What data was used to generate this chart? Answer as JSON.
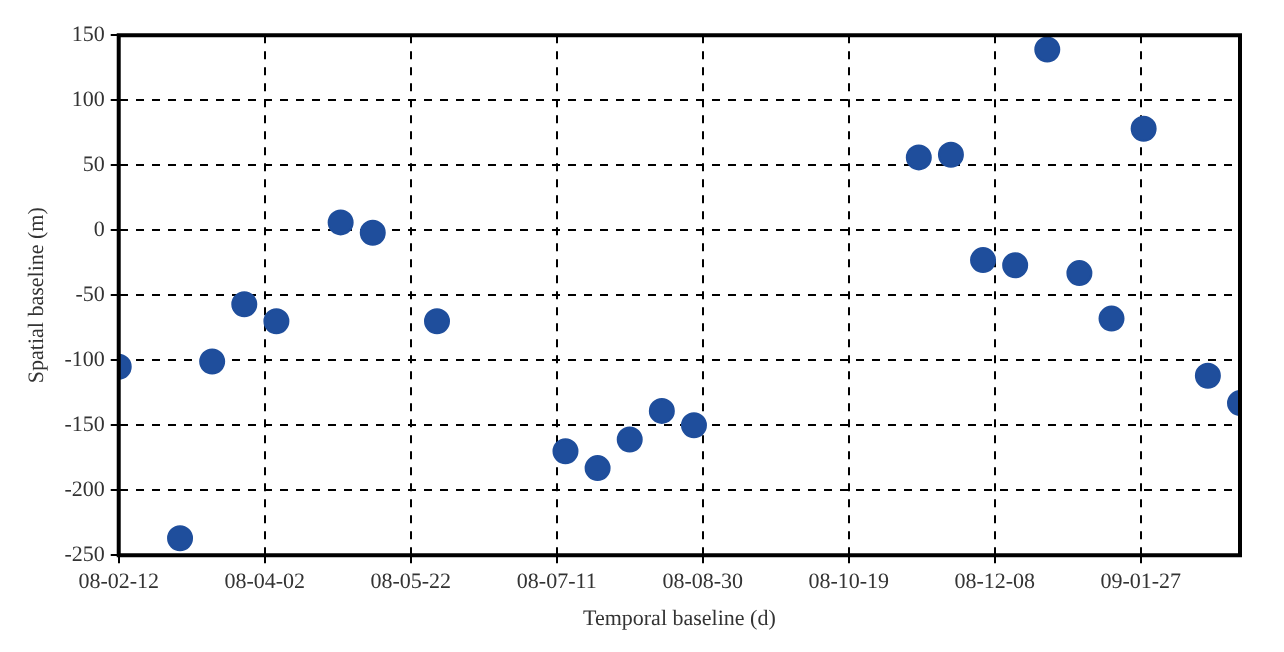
{
  "chart_data": {
    "type": "scatter",
    "xlabel": "Temporal baseline (d)",
    "ylabel": "Spatial baseline (m)",
    "x": [
      "2008-02-12",
      "2008-03-04",
      "2008-03-15",
      "2008-03-26",
      "2008-04-06",
      "2008-04-28",
      "2008-05-09",
      "2008-05-31",
      "2008-07-14",
      "2008-07-25",
      "2008-08-05",
      "2008-08-16",
      "2008-08-27",
      "2008-11-12",
      "2008-11-23",
      "2008-12-04",
      "2008-12-15",
      "2008-12-26",
      "2009-01-06",
      "2009-01-17",
      "2009-01-28",
      "2009-02-19",
      "2009-03-02"
    ],
    "series": [
      {
        "color": "#1f4e9c",
        "values": [
          -105,
          -237,
          -101,
          -57,
          -70,
          6,
          -2,
          -70,
          -170,
          -183,
          -161,
          -139,
          -150,
          56,
          58,
          -23,
          -27,
          139,
          -33,
          -68,
          78,
          -112,
          -133
        ]
      }
    ],
    "xlim": [
      "2008-02-12",
      "2009-03-02"
    ],
    "xticks": [
      {
        "value": "2008-02-12",
        "label": "08-02-12"
      },
      {
        "value": "2008-04-02",
        "label": "08-04-02"
      },
      {
        "value": "2008-05-22",
        "label": "08-05-22"
      },
      {
        "value": "2008-07-11",
        "label": "08-07-11"
      },
      {
        "value": "2008-08-30",
        "label": "08-08-30"
      },
      {
        "value": "2008-10-19",
        "label": "08-10-19"
      },
      {
        "value": "2008-12-08",
        "label": "08-12-08"
      },
      {
        "value": "2009-01-27",
        "label": "09-01-27"
      }
    ],
    "ylim": [
      -250,
      150
    ],
    "yticks": [
      -250,
      -200,
      -150,
      -100,
      -50,
      0,
      50,
      100,
      150
    ],
    "grid": true,
    "legend": false,
    "marker": "circle"
  }
}
